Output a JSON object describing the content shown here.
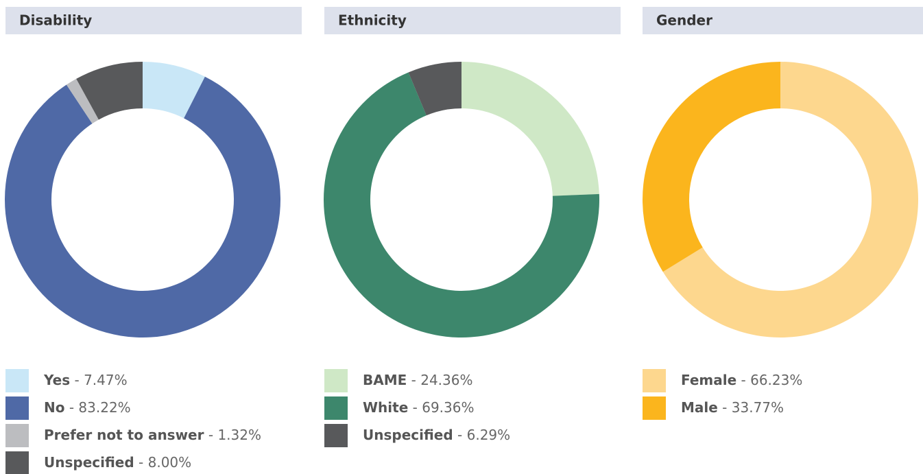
{
  "chart_data": [
    {
      "type": "pie",
      "title": "Disability",
      "categories": [
        "Yes",
        "No",
        "Prefer not to answer",
        "Unspecified"
      ],
      "values": [
        7.47,
        83.22,
        1.32,
        8.0
      ],
      "value_labels": [
        "7.47%",
        "83.22%",
        "1.32%",
        "8.00%"
      ],
      "colors": [
        "#c9e7f7",
        "#4f69a6",
        "#bcbdc0",
        "#58595b"
      ]
    },
    {
      "type": "pie",
      "title": "Ethnicity",
      "categories": [
        "BAME",
        "White",
        "Unspecified"
      ],
      "values": [
        24.36,
        69.36,
        6.29
      ],
      "value_labels": [
        "24.36%",
        "69.36%",
        "6.29%"
      ],
      "colors": [
        "#cfe8c6",
        "#3d876c",
        "#58595b"
      ]
    },
    {
      "type": "pie",
      "title": "Gender",
      "categories": [
        "Female",
        "Male"
      ],
      "values": [
        66.23,
        33.77
      ],
      "value_labels": [
        "66.23%",
        "33.77%"
      ],
      "colors": [
        "#fdd78e",
        "#fbb51d"
      ]
    }
  ]
}
